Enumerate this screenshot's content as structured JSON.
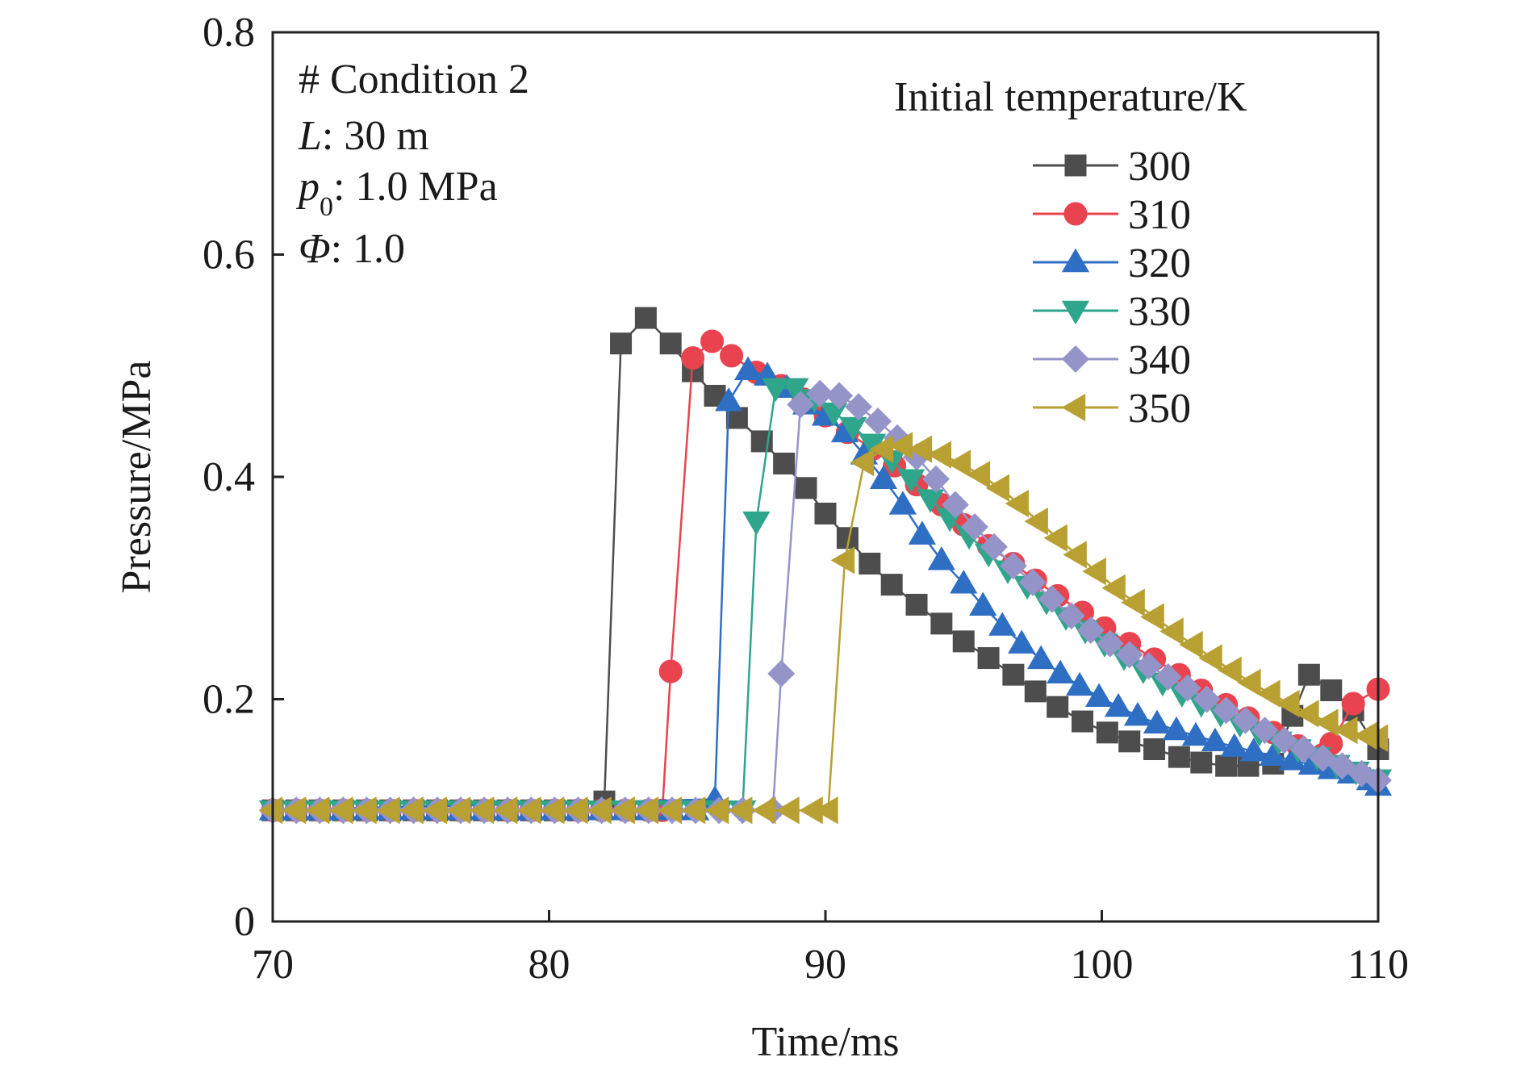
{
  "chart_data": {
    "type": "line",
    "xlabel": "Time/ms",
    "ylabel": "Pressure/MPa",
    "xlim": [
      70,
      110
    ],
    "ylim": [
      0,
      0.8
    ],
    "xticks": [
      "70",
      "80",
      "90",
      "100",
      "110"
    ],
    "yticks": [
      "0",
      "0.2",
      "0.4",
      "0.6",
      "0.8"
    ],
    "grid": false,
    "annotations": [
      "# Condition 2",
      "L: 30 m",
      "p0: 1.0 MPa",
      "Φ: 1.0"
    ],
    "annotation_parts": {
      "condition": "# Condition 2",
      "L_symbol": "L",
      "L_value": ": 30 m",
      "p_symbol": "p",
      "p_subscript": "0",
      "p_value": ": 1.0 MPa",
      "phi_symbol": "Φ",
      "phi_value": ": 1.0"
    },
    "legend_title": "Initial temperature/K",
    "legend_position": "top-right",
    "series": [
      {
        "name": "300",
        "color": "#4d4d4d",
        "marker": "square",
        "x": [
          70,
          82,
          82.6,
          83.5,
          84.4,
          85.2,
          86,
          86.8,
          87.7,
          88.5,
          89.3,
          90,
          90.8,
          91.6,
          92.4,
          93.3,
          94.2,
          95,
          95.9,
          96.8,
          97.6,
          98.4,
          99.3,
          100.2,
          101,
          101.9,
          102.8,
          103.6,
          104.5,
          105.3,
          106.2,
          106.9,
          107.5,
          108.3,
          109.1,
          110
        ],
        "y": [
          0.1,
          0.108,
          0.52,
          0.543,
          0.52,
          0.495,
          0.473,
          0.453,
          0.432,
          0.412,
          0.39,
          0.367,
          0.345,
          0.322,
          0.303,
          0.285,
          0.268,
          0.252,
          0.237,
          0.222,
          0.207,
          0.193,
          0.18,
          0.17,
          0.162,
          0.155,
          0.148,
          0.143,
          0.14,
          0.14,
          0.142,
          0.185,
          0.222,
          0.208,
          0.19,
          0.155
        ]
      },
      {
        "name": "310",
        "color": "#e8434e",
        "marker": "circle",
        "x": [
          70,
          84.1,
          84.4,
          85.2,
          85.9,
          86.6,
          87.5,
          88.4,
          89.2,
          90,
          90.8,
          91.7,
          92.5,
          93.3,
          94.2,
          95,
          95.9,
          96.8,
          97.6,
          98.4,
          99.3,
          100.1,
          101,
          101.9,
          102.8,
          103.6,
          104.5,
          105.3,
          106.2,
          107.1,
          108,
          108.3,
          109.1,
          110
        ],
        "y": [
          0.1,
          0.1,
          0.225,
          0.507,
          0.522,
          0.509,
          0.494,
          0.482,
          0.47,
          0.455,
          0.44,
          0.425,
          0.41,
          0.393,
          0.375,
          0.357,
          0.338,
          0.322,
          0.307,
          0.293,
          0.278,
          0.264,
          0.25,
          0.236,
          0.222,
          0.208,
          0.195,
          0.183,
          0.17,
          0.158,
          0.15,
          0.16,
          0.196,
          0.209
        ]
      },
      {
        "name": "320",
        "color": "#2e6fc4",
        "marker": "triangle-up",
        "x": [
          70,
          86,
          86.5,
          87.2,
          87.9,
          88.6,
          89.3,
          90,
          90.7,
          91.4,
          92.1,
          92.8,
          93.5,
          94.2,
          95,
          95.7,
          96.4,
          97.1,
          97.8,
          98.5,
          99.2,
          99.9,
          100.6,
          101.3,
          102,
          102.7,
          103.4,
          104.1,
          104.8,
          105.5,
          106.2,
          106.9,
          107.6,
          108.3,
          109,
          109.7,
          110
        ],
        "y": [
          0.1,
          0.11,
          0.468,
          0.496,
          0.491,
          0.48,
          0.465,
          0.455,
          0.44,
          0.42,
          0.398,
          0.375,
          0.348,
          0.325,
          0.304,
          0.284,
          0.266,
          0.25,
          0.236,
          0.223,
          0.212,
          0.202,
          0.193,
          0.185,
          0.178,
          0.172,
          0.167,
          0.162,
          0.157,
          0.153,
          0.149,
          0.145,
          0.141,
          0.137,
          0.133,
          0.127,
          0.122
        ]
      },
      {
        "name": "330",
        "color": "#2fa58c",
        "marker": "triangle-down",
        "x": [
          70,
          87,
          87.5,
          88.2,
          88.9,
          89.6,
          90.3,
          91,
          91.7,
          92.4,
          93.1,
          93.8,
          94.5,
          95.2,
          95.9,
          96.6,
          97.3,
          98,
          98.7,
          99.4,
          100.1,
          100.8,
          101.5,
          102.2,
          102.9,
          103.6,
          104.3,
          105,
          105.7,
          106.4,
          107.1,
          107.8,
          108.5,
          109.2,
          110
        ],
        "y": [
          0.1,
          0.1,
          0.36,
          0.48,
          0.48,
          0.47,
          0.458,
          0.445,
          0.43,
          0.415,
          0.398,
          0.38,
          0.363,
          0.347,
          0.331,
          0.316,
          0.302,
          0.288,
          0.274,
          0.262,
          0.25,
          0.238,
          0.226,
          0.215,
          0.205,
          0.196,
          0.187,
          0.178,
          0.17,
          0.162,
          0.155,
          0.148,
          0.141,
          0.135,
          0.128
        ]
      },
      {
        "name": "340",
        "color": "#9494c8",
        "marker": "diamond",
        "x": [
          70,
          88.1,
          88.4,
          89.1,
          89.8,
          90.5,
          91.2,
          91.9,
          92.6,
          93.3,
          94,
          94.7,
          95.4,
          96.1,
          96.8,
          97.5,
          98.2,
          98.9,
          99.6,
          100.3,
          101,
          101.7,
          102.4,
          103.1,
          103.8,
          104.5,
          105.2,
          105.9,
          106.6,
          107.3,
          108,
          108.7,
          109.4,
          110
        ],
        "y": [
          0.1,
          0.1,
          0.223,
          0.465,
          0.475,
          0.473,
          0.463,
          0.45,
          0.435,
          0.418,
          0.398,
          0.375,
          0.355,
          0.337,
          0.32,
          0.305,
          0.29,
          0.275,
          0.262,
          0.25,
          0.24,
          0.23,
          0.22,
          0.21,
          0.2,
          0.19,
          0.181,
          0.172,
          0.163,
          0.155,
          0.147,
          0.14,
          0.133,
          0.127
        ]
      },
      {
        "name": "350",
        "color": "#b8a032",
        "marker": "triangle-left",
        "x": [
          70,
          90.1,
          90.7,
          91.4,
          92.1,
          92.8,
          93.5,
          94.2,
          94.9,
          95.6,
          96.3,
          97,
          97.7,
          98.4,
          99.1,
          99.8,
          100.5,
          101.2,
          101.9,
          102.6,
          103.3,
          104,
          104.7,
          105.4,
          106.1,
          106.8,
          107.5,
          108.2,
          108.9,
          109.6,
          110
        ],
        "y": [
          0.1,
          0.1,
          0.325,
          0.413,
          0.425,
          0.428,
          0.425,
          0.42,
          0.412,
          0.402,
          0.39,
          0.376,
          0.36,
          0.345,
          0.33,
          0.315,
          0.3,
          0.287,
          0.274,
          0.261,
          0.249,
          0.237,
          0.226,
          0.215,
          0.205,
          0.196,
          0.187,
          0.179,
          0.172,
          0.167,
          0.165
        ]
      }
    ]
  }
}
